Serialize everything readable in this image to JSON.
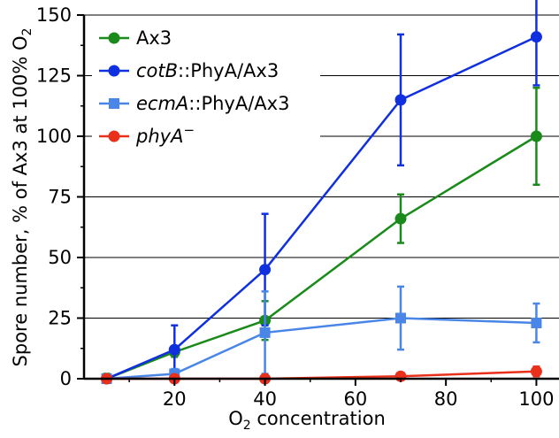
{
  "chart_data": {
    "type": "line",
    "xlabel": {
      "base": "O",
      "sub": "2",
      "rest": " concentration"
    },
    "ylabel": {
      "pre": "Spore number, % of Ax3 at 100% O",
      "sub": "2"
    },
    "xlim": [
      0,
      105
    ],
    "ylim": [
      0,
      150
    ],
    "x_ticks": [
      20,
      40,
      60,
      80,
      100
    ],
    "x_tick_labels": [
      "20",
      "40",
      "60",
      "80",
      "100"
    ],
    "y_ticks": [
      0,
      25,
      50,
      75,
      100,
      125,
      150
    ],
    "y_tick_labels": [
      "0",
      "25",
      "50",
      "75",
      "100",
      "125",
      "150"
    ],
    "grid": "horizontal",
    "legend_position": "top-left",
    "series": [
      {
        "name": "Ax3",
        "legend_parts": [
          {
            "text": "Ax3",
            "italic": false
          }
        ],
        "color": "#1a8a1a",
        "marker": "circle",
        "x": [
          5,
          20,
          40,
          70,
          100
        ],
        "y": [
          0,
          11,
          24,
          66,
          100
        ],
        "err": [
          2,
          2,
          8,
          10,
          20
        ]
      },
      {
        "name": "cotB::PhyA/Ax3",
        "legend_parts": [
          {
            "text": "cotB",
            "italic": true
          },
          {
            "text": "::PhyA/Ax3",
            "italic": false
          }
        ],
        "color": "#1030e0",
        "marker": "circle",
        "x": [
          5,
          20,
          40,
          70,
          100
        ],
        "y": [
          0,
          12,
          45,
          115,
          141
        ],
        "err": [
          1,
          10,
          23,
          27,
          20
        ]
      },
      {
        "name": "ecmA::PhyA/Ax3",
        "legend_parts": [
          {
            "text": "ecmA",
            "italic": true
          },
          {
            "text": "::PhyA/Ax3",
            "italic": false
          }
        ],
        "color": "#4a86e8",
        "marker": "square",
        "x": [
          5,
          20,
          40,
          70,
          100
        ],
        "y": [
          0,
          2,
          19,
          25,
          23
        ],
        "err": [
          1,
          2,
          17,
          13,
          8
        ]
      },
      {
        "name": "phyA−",
        "legend_parts": [
          {
            "text": "phyA",
            "italic": true
          },
          {
            "text": "−",
            "italic": false,
            "sup": true
          }
        ],
        "color": "#e8301a",
        "marker": "circle",
        "x": [
          5,
          20,
          40,
          70,
          100
        ],
        "y": [
          0,
          0,
          0,
          1,
          3
        ],
        "err": [
          0,
          0,
          0,
          0,
          2
        ]
      }
    ]
  }
}
